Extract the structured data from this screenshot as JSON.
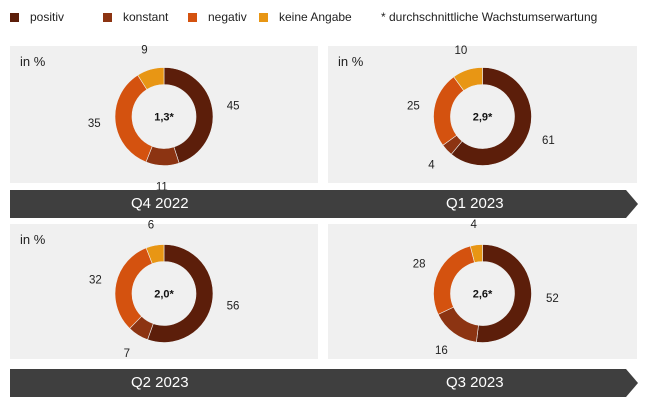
{
  "legend": {
    "items": [
      {
        "label": "positiv",
        "color": "#5c1e0a"
      },
      {
        "label": "konstant",
        "color": "#8c3412"
      },
      {
        "label": "negativ",
        "color": "#d4520f"
      },
      {
        "label": "keine Angabe",
        "color": "#e89614"
      }
    ],
    "note": "* durchschnittliche Wachstumserwartung"
  },
  "timeline": [
    {
      "labels": [
        "Q4 2022",
        "Q1 2023"
      ]
    },
    {
      "labels": [
        "Q2 2023",
        "Q3 2023"
      ]
    }
  ],
  "chart_data": [
    {
      "type": "pie",
      "title": "",
      "unit": "in %",
      "center_label": "1,3*",
      "quarter": "Q4 2022",
      "categories": [
        "positiv",
        "konstant",
        "negativ",
        "keine Angabe"
      ],
      "values": [
        45,
        11,
        35,
        9
      ]
    },
    {
      "type": "pie",
      "title": "",
      "unit": "in %",
      "center_label": "2,9*",
      "quarter": "Q1 2023",
      "categories": [
        "positiv",
        "konstant",
        "negativ",
        "keine Angabe"
      ],
      "values": [
        61,
        4,
        25,
        10
      ]
    },
    {
      "type": "pie",
      "title": "",
      "unit": "in %",
      "center_label": "2,0*",
      "quarter": "Q2 2023",
      "categories": [
        "positiv",
        "konstant",
        "negativ",
        "keine Angabe"
      ],
      "values": [
        56,
        7,
        32,
        6
      ]
    },
    {
      "type": "pie",
      "title": "",
      "unit": "in %",
      "center_label": "2,6*",
      "quarter": "Q3 2023",
      "categories": [
        "positiv",
        "konstant",
        "negativ",
        "keine Angabe"
      ],
      "values": [
        52,
        16,
        28,
        4
      ]
    }
  ]
}
